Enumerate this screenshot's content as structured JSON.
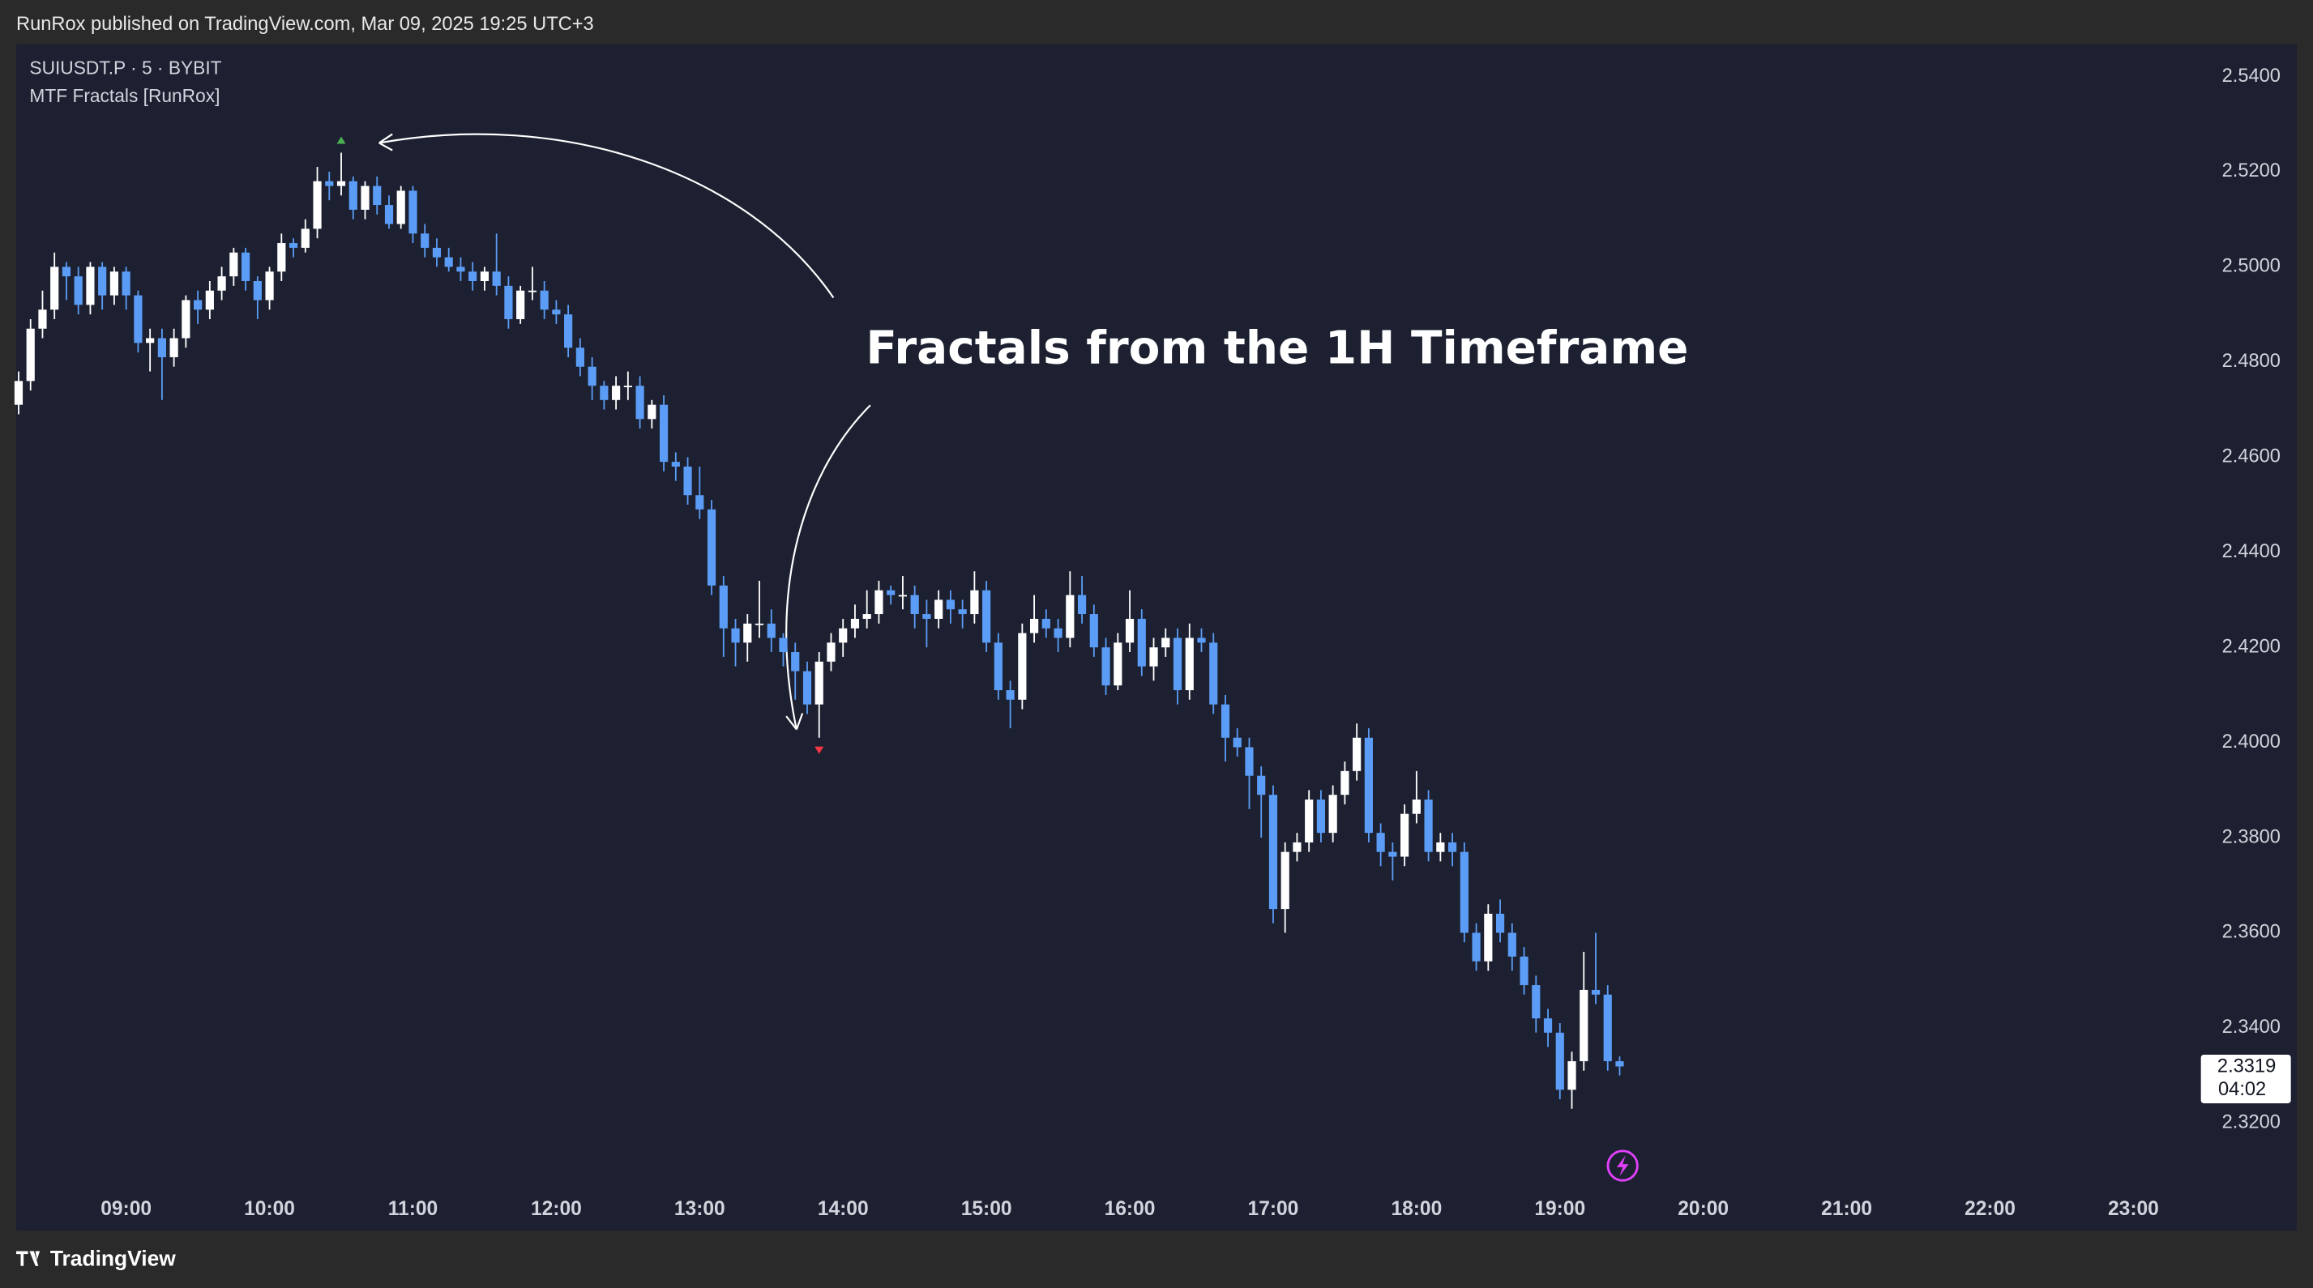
{
  "header": {
    "published": "RunRox published on TradingView.com, Mar 09, 2025 19:25 UTC+3",
    "brand": "TradingView"
  },
  "chart_data": {
    "type": "candlestick",
    "symbol": "SUIUSDT.P · 5 · BYBIT",
    "indicator": "MTF Fractals [RunRox]",
    "annotation": "Fractals from the 1H Timeframe",
    "x": [
      "08:15",
      "08:20",
      "08:25",
      "08:30",
      "08:35",
      "08:40",
      "08:45",
      "08:50",
      "08:55",
      "09:00",
      "09:05",
      "09:10",
      "09:15",
      "09:20",
      "09:25",
      "09:30",
      "09:35",
      "09:40",
      "09:45",
      "09:50",
      "09:55",
      "10:00",
      "10:05",
      "10:10",
      "10:15",
      "10:20",
      "10:25",
      "10:30",
      "10:35",
      "10:40",
      "10:45",
      "10:50",
      "10:55",
      "11:00",
      "11:05",
      "11:10",
      "11:15",
      "11:20",
      "11:25",
      "11:30",
      "11:35",
      "11:40",
      "11:45",
      "11:50",
      "11:55",
      "12:00",
      "12:05",
      "12:10",
      "12:15",
      "12:20",
      "12:25",
      "12:30",
      "12:35",
      "12:40",
      "12:45",
      "12:50",
      "12:55",
      "13:00",
      "13:05",
      "13:10",
      "13:15",
      "13:20",
      "13:25",
      "13:30",
      "13:35",
      "13:40",
      "13:45",
      "13:50",
      "13:55",
      "14:00",
      "14:05",
      "14:10",
      "14:15",
      "14:20",
      "14:25",
      "14:30",
      "14:35",
      "14:40",
      "14:45",
      "14:50",
      "14:55",
      "15:00",
      "15:05",
      "15:10",
      "15:15",
      "15:20",
      "15:25",
      "15:30",
      "15:35",
      "15:40",
      "15:45",
      "15:50",
      "15:55",
      "16:00",
      "16:05",
      "16:10",
      "16:15",
      "16:20",
      "16:25",
      "16:30",
      "16:35",
      "16:40",
      "16:45",
      "16:50",
      "16:55",
      "17:00",
      "17:05",
      "17:10",
      "17:15",
      "17:20",
      "17:25",
      "17:30",
      "17:35",
      "17:40",
      "17:45",
      "17:50",
      "17:55",
      "18:00",
      "18:05",
      "18:10",
      "18:15",
      "18:20",
      "18:25",
      "18:30",
      "18:35",
      "18:40",
      "18:45",
      "18:50",
      "18:55",
      "19:00",
      "19:05",
      "19:10",
      "19:15",
      "19:20",
      "19:25"
    ],
    "open": [
      2.471,
      2.476,
      2.487,
      2.491,
      2.5,
      2.498,
      2.492,
      2.5,
      2.494,
      2.499,
      2.494,
      2.484,
      2.485,
      2.481,
      2.485,
      2.493,
      2.491,
      2.495,
      2.498,
      2.503,
      2.497,
      2.493,
      2.499,
      2.505,
      2.504,
      2.508,
      2.518,
      2.517,
      2.518,
      2.512,
      2.517,
      2.513,
      2.509,
      2.516,
      2.507,
      2.504,
      2.502,
      2.5,
      2.499,
      2.497,
      2.499,
      2.496,
      2.489,
      2.495,
      2.495,
      2.491,
      2.49,
      2.483,
      2.479,
      2.475,
      2.472,
      2.475,
      2.475,
      2.468,
      2.471,
      2.459,
      2.458,
      2.452,
      2.449,
      2.433,
      2.424,
      2.421,
      2.425,
      2.425,
      2.422,
      2.419,
      2.415,
      2.408,
      2.417,
      2.421,
      2.424,
      2.426,
      2.427,
      2.432,
      2.431,
      2.431,
      2.427,
      2.426,
      2.43,
      2.428,
      2.427,
      2.432,
      2.421,
      2.411,
      2.409,
      2.423,
      2.426,
      2.424,
      2.422,
      2.431,
      2.427,
      2.42,
      2.412,
      2.421,
      2.426,
      2.416,
      2.42,
      2.422,
      2.411,
      2.422,
      2.421,
      2.408,
      2.401,
      2.399,
      2.393,
      2.389,
      2.365,
      2.377,
      2.379,
      2.388,
      2.381,
      2.389,
      2.394,
      2.401,
      2.381,
      2.377,
      2.376,
      2.385,
      2.388,
      2.377,
      2.379,
      2.377,
      2.36,
      2.354,
      2.364,
      2.36,
      2.355,
      2.349,
      2.342,
      2.339,
      2.327,
      2.333,
      2.348,
      2.347,
      2.333
    ],
    "high": [
      2.478,
      2.489,
      2.495,
      2.503,
      2.501,
      2.5,
      2.501,
      2.501,
      2.5,
      2.5,
      2.495,
      2.487,
      2.487,
      2.487,
      2.494,
      2.495,
      2.497,
      2.5,
      2.504,
      2.504,
      2.498,
      2.5,
      2.507,
      2.506,
      2.51,
      2.521,
      2.52,
      2.524,
      2.519,
      2.518,
      2.519,
      2.515,
      2.517,
      2.517,
      2.509,
      2.506,
      2.504,
      2.502,
      2.501,
      2.5,
      2.507,
      2.498,
      2.496,
      2.5,
      2.497,
      2.493,
      2.492,
      2.485,
      2.481,
      2.476,
      2.477,
      2.478,
      2.477,
      2.472,
      2.473,
      2.461,
      2.46,
      2.458,
      2.451,
      2.435,
      2.426,
      2.427,
      2.434,
      2.428,
      2.423,
      2.421,
      2.417,
      2.419,
      2.423,
      2.426,
      2.429,
      2.432,
      2.434,
      2.433,
      2.435,
      2.433,
      2.43,
      2.432,
      2.432,
      2.43,
      2.436,
      2.434,
      2.423,
      2.413,
      2.425,
      2.431,
      2.428,
      2.426,
      2.436,
      2.435,
      2.429,
      2.422,
      2.423,
      2.432,
      2.428,
      2.422,
      2.424,
      2.424,
      2.425,
      2.424,
      2.423,
      2.41,
      2.403,
      2.401,
      2.395,
      2.391,
      2.379,
      2.381,
      2.39,
      2.39,
      2.391,
      2.396,
      2.404,
      2.403,
      2.383,
      2.379,
      2.387,
      2.394,
      2.39,
      2.381,
      2.381,
      2.379,
      2.362,
      2.366,
      2.367,
      2.362,
      2.357,
      2.351,
      2.344,
      2.341,
      2.335,
      2.356,
      2.36,
      2.349,
      2.334
    ],
    "low": [
      2.469,
      2.474,
      2.485,
      2.489,
      2.493,
      2.49,
      2.49,
      2.491,
      2.492,
      2.491,
      2.482,
      2.478,
      2.472,
      2.479,
      2.483,
      2.488,
      2.489,
      2.493,
      2.496,
      2.495,
      2.489,
      2.491,
      2.497,
      2.502,
      2.503,
      2.506,
      2.514,
      2.515,
      2.51,
      2.51,
      2.511,
      2.508,
      2.508,
      2.505,
      2.502,
      2.5,
      2.499,
      2.497,
      2.495,
      2.495,
      2.494,
      2.487,
      2.488,
      2.493,
      2.489,
      2.488,
      2.481,
      2.477,
      2.472,
      2.47,
      2.47,
      2.472,
      2.466,
      2.466,
      2.457,
      2.455,
      2.45,
      2.447,
      2.431,
      2.418,
      2.416,
      2.417,
      2.422,
      2.419,
      2.416,
      2.409,
      2.406,
      2.401,
      2.415,
      2.418,
      2.422,
      2.424,
      2.425,
      2.429,
      2.428,
      2.424,
      2.42,
      2.424,
      2.425,
      2.424,
      2.425,
      2.419,
      2.409,
      2.403,
      2.407,
      2.421,
      2.422,
      2.419,
      2.42,
      2.425,
      2.418,
      2.41,
      2.411,
      2.419,
      2.414,
      2.413,
      2.418,
      2.408,
      2.409,
      2.419,
      2.406,
      2.396,
      2.397,
      2.386,
      2.38,
      2.362,
      2.36,
      2.375,
      2.377,
      2.379,
      2.379,
      2.387,
      2.392,
      2.379,
      2.374,
      2.371,
      2.374,
      2.383,
      2.375,
      2.375,
      2.374,
      2.358,
      2.352,
      2.352,
      2.358,
      2.352,
      2.347,
      2.339,
      2.336,
      2.325,
      2.323,
      2.331,
      2.345,
      2.331,
      2.33
    ],
    "close": [
      2.476,
      2.487,
      2.491,
      2.5,
      2.498,
      2.492,
      2.5,
      2.494,
      2.499,
      2.494,
      2.484,
      2.485,
      2.481,
      2.485,
      2.493,
      2.491,
      2.495,
      2.498,
      2.503,
      2.497,
      2.493,
      2.499,
      2.505,
      2.504,
      2.508,
      2.518,
      2.517,
      2.518,
      2.512,
      2.517,
      2.513,
      2.509,
      2.516,
      2.507,
      2.504,
      2.502,
      2.5,
      2.499,
      2.497,
      2.499,
      2.496,
      2.489,
      2.495,
      2.495,
      2.491,
      2.49,
      2.483,
      2.479,
      2.475,
      2.472,
      2.475,
      2.475,
      2.468,
      2.471,
      2.459,
      2.458,
      2.452,
      2.449,
      2.433,
      2.424,
      2.421,
      2.425,
      2.425,
      2.422,
      2.419,
      2.415,
      2.408,
      2.417,
      2.421,
      2.424,
      2.426,
      2.427,
      2.432,
      2.431,
      2.431,
      2.427,
      2.426,
      2.43,
      2.428,
      2.427,
      2.432,
      2.421,
      2.411,
      2.409,
      2.423,
      2.426,
      2.424,
      2.422,
      2.431,
      2.427,
      2.42,
      2.412,
      2.421,
      2.426,
      2.416,
      2.42,
      2.422,
      2.411,
      2.422,
      2.421,
      2.408,
      2.401,
      2.399,
      2.393,
      2.389,
      2.365,
      2.377,
      2.379,
      2.388,
      2.381,
      2.389,
      2.394,
      2.401,
      2.381,
      2.377,
      2.376,
      2.385,
      2.388,
      2.377,
      2.379,
      2.377,
      2.36,
      2.354,
      2.364,
      2.36,
      2.355,
      2.349,
      2.342,
      2.339,
      2.327,
      2.333,
      2.348,
      2.347,
      2.333,
      2.3319
    ],
    "countdown": "04:02",
    "fractal_highs": [
      "10:30"
    ],
    "fractal_lows": [
      "13:50"
    ],
    "up_color": "#ffffff",
    "down_color": "#5b9cf6",
    "fractal_high_color": "#4caf50",
    "fractal_low_color": "#f23645",
    "grid": false,
    "xlim": [
      "08:14",
      "23:27"
    ],
    "xticks": [
      "09:00",
      "10:00",
      "11:00",
      "12:00",
      "13:00",
      "14:00",
      "15:00",
      "16:00",
      "17:00",
      "18:00",
      "19:00",
      "20:00",
      "21:00",
      "22:00",
      "23:00"
    ],
    "ylim": [
      2.3067,
      2.5468
    ],
    "yticks": [
      {
        "value": 2.32,
        "label": "2.3200"
      },
      {
        "value": 2.34,
        "label": "2.3400"
      },
      {
        "value": 2.36,
        "label": "2.3600"
      },
      {
        "value": 2.38,
        "label": "2.3800"
      },
      {
        "value": 2.4,
        "label": "2.4000"
      },
      {
        "value": 2.42,
        "label": "2.4200"
      },
      {
        "value": 2.44,
        "label": "2.4400"
      },
      {
        "value": 2.46,
        "label": "2.4600"
      },
      {
        "value": 2.48,
        "label": "2.4800"
      },
      {
        "value": 2.5,
        "label": "2.5000"
      },
      {
        "value": 2.52,
        "label": "2.5200"
      },
      {
        "value": 2.54,
        "label": "2.5400"
      }
    ]
  }
}
